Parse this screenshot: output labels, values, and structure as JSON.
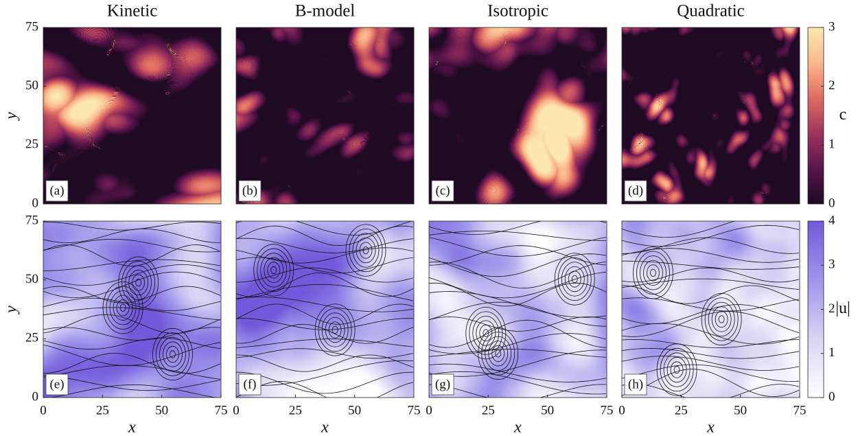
{
  "chart_data": [
    {
      "type": "heatmap",
      "title": "Kinetic",
      "label": "(a)",
      "xlim": [
        0,
        75
      ],
      "ylim": [
        0,
        75
      ],
      "yticks": [
        0,
        25,
        50,
        75
      ],
      "ylabel": "y"
    },
    {
      "type": "heatmap",
      "title": "B-model",
      "label": "(b)",
      "xlim": [
        0,
        75
      ],
      "ylim": [
        0,
        75
      ]
    },
    {
      "type": "heatmap",
      "title": "Isotropic",
      "label": "(c)",
      "xlim": [
        0,
        75
      ],
      "ylim": [
        0,
        75
      ]
    },
    {
      "type": "heatmap",
      "title": "Quadratic",
      "label": "(d)",
      "xlim": [
        0,
        75
      ],
      "ylim": [
        0,
        75
      ]
    },
    {
      "type": "streamplot",
      "label": "(e)",
      "xlim": [
        0,
        75
      ],
      "ylim": [
        0,
        75
      ],
      "xticks": [
        0,
        25,
        50,
        75
      ],
      "yticks": [
        0,
        25,
        50,
        75
      ],
      "xlabel": "x",
      "ylabel": "y"
    },
    {
      "type": "streamplot",
      "label": "(f)",
      "xlim": [
        0,
        75
      ],
      "ylim": [
        0,
        75
      ],
      "xticks": [
        0,
        25,
        50,
        75
      ],
      "xlabel": "x"
    },
    {
      "type": "streamplot",
      "label": "(g)",
      "xlim": [
        0,
        75
      ],
      "ylim": [
        0,
        75
      ],
      "xticks": [
        0,
        25,
        50,
        75
      ],
      "xlabel": "x"
    },
    {
      "type": "streamplot",
      "label": "(h)",
      "xlim": [
        0,
        75
      ],
      "ylim": [
        0,
        75
      ],
      "xticks": [
        0,
        25,
        50,
        75
      ],
      "xlabel": "x"
    },
    {
      "type": "colorbar",
      "label": "c",
      "ylim": [
        0,
        3
      ],
      "yticks": [
        0,
        1,
        2,
        3
      ]
    },
    {
      "type": "colorbar",
      "label": "|u|",
      "ylim": [
        0,
        4
      ],
      "yticks": [
        0,
        1,
        2,
        3,
        4
      ]
    }
  ]
}
